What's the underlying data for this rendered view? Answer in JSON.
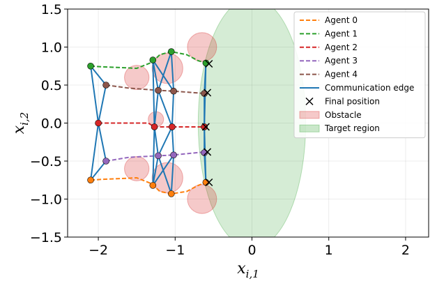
{
  "chart_data": {
    "type": "line",
    "xlabel": "x_{i,1}",
    "ylabel": "x_{i,2}",
    "xlim": [
      -2.4,
      2.3
    ],
    "ylim": [
      -1.5,
      1.5
    ],
    "x_ticks": [
      -2,
      -1,
      0,
      1,
      2
    ],
    "y_ticks": [
      -1.5,
      -1.0,
      -0.5,
      0.0,
      0.5,
      1.0,
      1.5
    ],
    "x_tick_labels": [
      "−2",
      "−1",
      "0",
      "1",
      "2"
    ],
    "y_tick_labels": [
      "−1.5",
      "−1.0",
      "−0.5",
      "0.0",
      "0.5",
      "1.0",
      "1.5"
    ],
    "grid": true,
    "legend_position": "top-right",
    "target_region": {
      "cx": 0.0,
      "cy": 0.0,
      "rx": 0.7,
      "ry": 1.65,
      "color": "#2ca02c",
      "label": "Target region"
    },
    "obstacles": {
      "label": "Obstacle",
      "color": "#d62728",
      "items": [
        {
          "x": -0.65,
          "y": 1.0,
          "r": 0.19
        },
        {
          "x": -1.1,
          "y": 0.72,
          "r": 0.2
        },
        {
          "x": -1.5,
          "y": 0.6,
          "r": 0.16
        },
        {
          "x": -1.25,
          "y": 0.05,
          "r": 0.1
        },
        {
          "x": -1.5,
          "y": -0.6,
          "r": 0.16
        },
        {
          "x": -1.1,
          "y": -0.72,
          "r": 0.2
        },
        {
          "x": -0.65,
          "y": -1.0,
          "r": 0.19
        }
      ]
    },
    "series": [
      {
        "name": "Agent 0",
        "color": "#ff7f0e",
        "points": [
          [
            -2.1,
            -0.75
          ],
          [
            -1.95,
            -0.74
          ],
          [
            -1.7,
            -0.73
          ],
          [
            -1.5,
            -0.72
          ],
          [
            -1.3,
            -0.8
          ],
          [
            -1.2,
            -0.9
          ],
          [
            -1.05,
            -0.93
          ],
          [
            -0.85,
            -0.9
          ],
          [
            -0.7,
            -0.82
          ],
          [
            -0.6,
            -0.78
          ]
        ],
        "markers": [
          [
            -2.1,
            -0.75
          ],
          [
            -1.29,
            -0.82
          ],
          [
            -1.05,
            -0.93
          ],
          [
            -0.6,
            -0.78
          ]
        ],
        "final": [
          -0.56,
          -0.78
        ]
      },
      {
        "name": "Agent 1",
        "color": "#2ca02c",
        "points": [
          [
            -2.1,
            0.75
          ],
          [
            -1.95,
            0.74
          ],
          [
            -1.7,
            0.73
          ],
          [
            -1.5,
            0.72
          ],
          [
            -1.3,
            0.8
          ],
          [
            -1.2,
            0.9
          ],
          [
            -1.05,
            0.94
          ],
          [
            -0.85,
            0.9
          ],
          [
            -0.7,
            0.82
          ],
          [
            -0.6,
            0.79
          ]
        ],
        "markers": [
          [
            -2.1,
            0.75
          ],
          [
            -1.29,
            0.83
          ],
          [
            -1.05,
            0.94
          ],
          [
            -0.6,
            0.79
          ]
        ],
        "final": [
          -0.56,
          0.78
        ]
      },
      {
        "name": "Agent 2",
        "color": "#d62728",
        "points": [
          [
            -2.0,
            0.0
          ],
          [
            -1.6,
            0.0
          ],
          [
            -1.35,
            0.0
          ],
          [
            -1.27,
            -0.05
          ],
          [
            -1.04,
            -0.05
          ],
          [
            -0.62,
            -0.05
          ]
        ],
        "markers": [
          [
            -2.0,
            0.0
          ],
          [
            -1.27,
            -0.05
          ],
          [
            -1.04,
            -0.05
          ],
          [
            -0.62,
            -0.05
          ]
        ],
        "final": [
          -0.6,
          -0.05
        ]
      },
      {
        "name": "Agent 3",
        "color": "#9467bd",
        "points": [
          [
            -1.9,
            -0.5
          ],
          [
            -1.6,
            -0.45
          ],
          [
            -1.22,
            -0.43
          ],
          [
            -1.02,
            -0.42
          ],
          [
            -0.62,
            -0.38
          ]
        ],
        "markers": [
          [
            -1.9,
            -0.5
          ],
          [
            -1.22,
            -0.43
          ],
          [
            -1.02,
            -0.42
          ],
          [
            -0.62,
            -0.39
          ]
        ],
        "final": [
          -0.58,
          -0.38
        ]
      },
      {
        "name": "Agent 4",
        "color": "#8c564b",
        "points": [
          [
            -1.9,
            0.5
          ],
          [
            -1.6,
            0.46
          ],
          [
            -1.22,
            0.43
          ],
          [
            -1.02,
            0.42
          ],
          [
            -0.62,
            0.39
          ]
        ],
        "markers": [
          [
            -1.9,
            0.5
          ],
          [
            -1.22,
            0.43
          ],
          [
            -1.02,
            0.42
          ],
          [
            -0.62,
            0.39
          ]
        ],
        "final": [
          -0.58,
          0.4
        ]
      }
    ],
    "communication": {
      "label": "Communication edge",
      "color": "#1f77b4",
      "edges": [
        [
          [
            -2.1,
            0.75
          ],
          [
            -1.9,
            0.5
          ]
        ],
        [
          [
            -1.9,
            0.5
          ],
          [
            -2.0,
            0.0
          ]
        ],
        [
          [
            -2.0,
            0.0
          ],
          [
            -1.9,
            -0.5
          ]
        ],
        [
          [
            -1.9,
            -0.5
          ],
          [
            -2.1,
            -0.75
          ]
        ],
        [
          [
            -2.1,
            0.75
          ],
          [
            -2.0,
            0.0
          ]
        ],
        [
          [
            -2.0,
            0.0
          ],
          [
            -2.1,
            -0.75
          ]
        ],
        [
          [
            -1.29,
            0.83
          ],
          [
            -1.22,
            0.43
          ]
        ],
        [
          [
            -1.22,
            0.43
          ],
          [
            -1.27,
            -0.05
          ]
        ],
        [
          [
            -1.27,
            -0.05
          ],
          [
            -1.22,
            -0.43
          ]
        ],
        [
          [
            -1.22,
            -0.43
          ],
          [
            -1.29,
            -0.82
          ]
        ],
        [
          [
            -1.29,
            0.83
          ],
          [
            -1.27,
            -0.05
          ]
        ],
        [
          [
            -1.27,
            -0.05
          ],
          [
            -1.29,
            -0.82
          ]
        ],
        [
          [
            -1.05,
            0.94
          ],
          [
            -1.02,
            0.42
          ]
        ],
        [
          [
            -1.02,
            0.42
          ],
          [
            -1.04,
            -0.05
          ]
        ],
        [
          [
            -1.04,
            -0.05
          ],
          [
            -1.02,
            -0.42
          ]
        ],
        [
          [
            -1.02,
            -0.42
          ],
          [
            -1.05,
            -0.93
          ]
        ],
        [
          [
            -1.05,
            0.94
          ],
          [
            -1.22,
            0.43
          ]
        ],
        [
          [
            -1.22,
            -0.43
          ],
          [
            -1.05,
            -0.93
          ]
        ],
        [
          [
            -1.29,
            0.83
          ],
          [
            -1.02,
            0.42
          ]
        ],
        [
          [
            -1.29,
            -0.82
          ],
          [
            -1.02,
            -0.42
          ]
        ],
        [
          [
            -1.22,
            0.43
          ],
          [
            -1.04,
            -0.05
          ]
        ],
        [
          [
            -1.22,
            -0.43
          ],
          [
            -1.04,
            -0.05
          ]
        ],
        [
          [
            -0.6,
            0.79
          ],
          [
            -0.62,
            0.39
          ]
        ],
        [
          [
            -0.62,
            0.39
          ],
          [
            -0.62,
            -0.05
          ]
        ],
        [
          [
            -0.62,
            -0.05
          ],
          [
            -0.62,
            -0.39
          ]
        ],
        [
          [
            -0.62,
            -0.39
          ],
          [
            -0.6,
            -0.78
          ]
        ],
        [
          [
            -0.6,
            0.79
          ],
          [
            -0.62,
            -0.05
          ]
        ],
        [
          [
            -0.62,
            -0.05
          ],
          [
            -0.6,
            -0.78
          ]
        ]
      ]
    },
    "legend": [
      {
        "label": "Agent 0",
        "kind": "dashed",
        "color": "#ff7f0e"
      },
      {
        "label": "Agent 1",
        "kind": "dashed",
        "color": "#2ca02c"
      },
      {
        "label": "Agent 2",
        "kind": "dashed",
        "color": "#d62728"
      },
      {
        "label": "Agent 3",
        "kind": "dashed",
        "color": "#9467bd"
      },
      {
        "label": "Agent 4",
        "kind": "dashed",
        "color": "#8c564b"
      },
      {
        "label": "Communication edge",
        "kind": "solid",
        "color": "#1f77b4"
      },
      {
        "label": "Final position",
        "kind": "cross",
        "color": "#000000"
      },
      {
        "label": "Obstacle",
        "kind": "patch",
        "color": "#d62728"
      },
      {
        "label": "Target region",
        "kind": "patch",
        "color": "#2ca02c"
      }
    ]
  }
}
